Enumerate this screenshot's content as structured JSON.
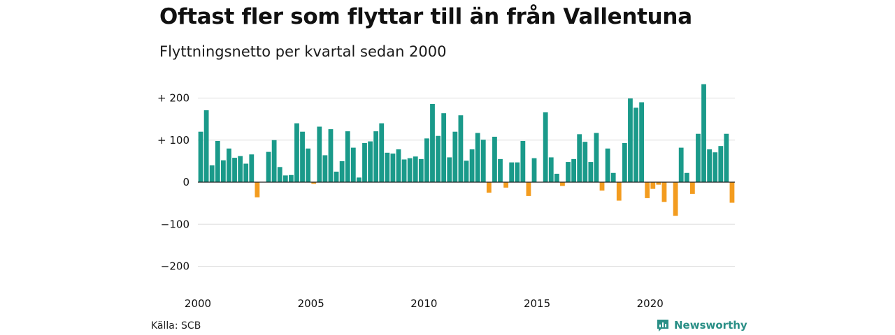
{
  "title": "Oftast fler som flyttar till än från Vallentuna",
  "subtitle": "Flyttningsnetto per kvartal sedan 2000",
  "source": "Källa: SCB",
  "brand": {
    "name": "Newsworthy",
    "icon": "newsworthy-logo-icon",
    "color": "#2a8f86"
  },
  "colors": {
    "positive": "#1a9a8a",
    "negative": "#f39c1f",
    "grid": "#dddddd"
  },
  "chart_data": {
    "type": "bar",
    "title": "Oftast fler som flyttar till än från Vallentuna",
    "subtitle": "Flyttningsnetto per kvartal sedan 2000",
    "xlabel": "",
    "ylabel": "",
    "ylim": [
      -220,
      240
    ],
    "x_start": 2000,
    "quarters_per_year": 4,
    "grid": true,
    "yticks": [
      {
        "value": 200,
        "label": "+ 200"
      },
      {
        "value": 100,
        "label": "+ 100"
      },
      {
        "value": 0,
        "label": "0"
      },
      {
        "value": -100,
        "label": "−100"
      },
      {
        "value": -200,
        "label": "−200"
      }
    ],
    "xticks": [
      {
        "value": 2000,
        "label": "2000"
      },
      {
        "value": 2005,
        "label": "2005"
      },
      {
        "value": 2010,
        "label": "2010"
      },
      {
        "value": 2015,
        "label": "2015"
      },
      {
        "value": 2020,
        "label": "2020"
      }
    ],
    "values": [
      120,
      171,
      40,
      98,
      52,
      80,
      58,
      62,
      44,
      66,
      -36,
      0,
      72,
      100,
      36,
      16,
      17,
      140,
      120,
      80,
      -4,
      132,
      64,
      126,
      25,
      50,
      121,
      82,
      11,
      93,
      97,
      121,
      140,
      70,
      68,
      78,
      54,
      57,
      61,
      55,
      104,
      186,
      110,
      164,
      59,
      120,
      159,
      51,
      78,
      117,
      101,
      -25,
      108,
      55,
      -13,
      47,
      47,
      98,
      -33,
      57,
      0,
      166,
      59,
      20,
      -9,
      48,
      55,
      114,
      96,
      48,
      117,
      -20,
      80,
      22,
      -44,
      93,
      199,
      177,
      190,
      -38,
      -16,
      -6,
      -47,
      0,
      -80,
      82,
      22,
      -28,
      115,
      233,
      78,
      71,
      86,
      115,
      -49
    ]
  }
}
